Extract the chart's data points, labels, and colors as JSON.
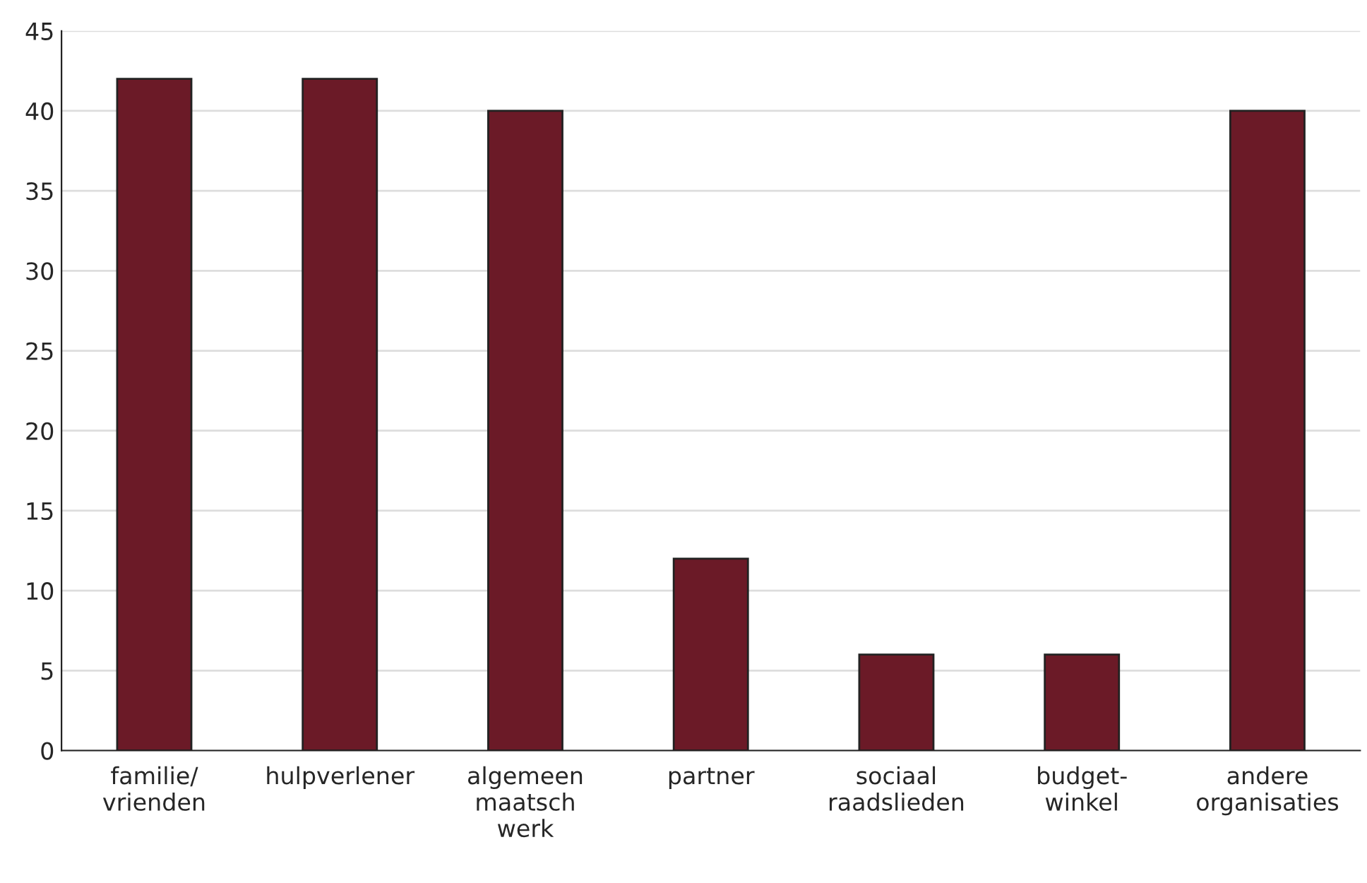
{
  "chart_data": {
    "type": "bar",
    "categories": [
      "familie/\nvrienden",
      "hulpverlener",
      "algemeen\nmaatsch\nwerk",
      "partner",
      "sociaal\nraadslieden",
      "budget-\nwinkel",
      "andere\norganisaties"
    ],
    "values": [
      42,
      42,
      40,
      12,
      6,
      6,
      40
    ],
    "color": "#6b1a27",
    "ylim": [
      0,
      45
    ],
    "yticks": [
      0,
      5,
      10,
      15,
      20,
      25,
      30,
      35,
      40,
      45
    ],
    "grid": "y",
    "legend": false
  }
}
